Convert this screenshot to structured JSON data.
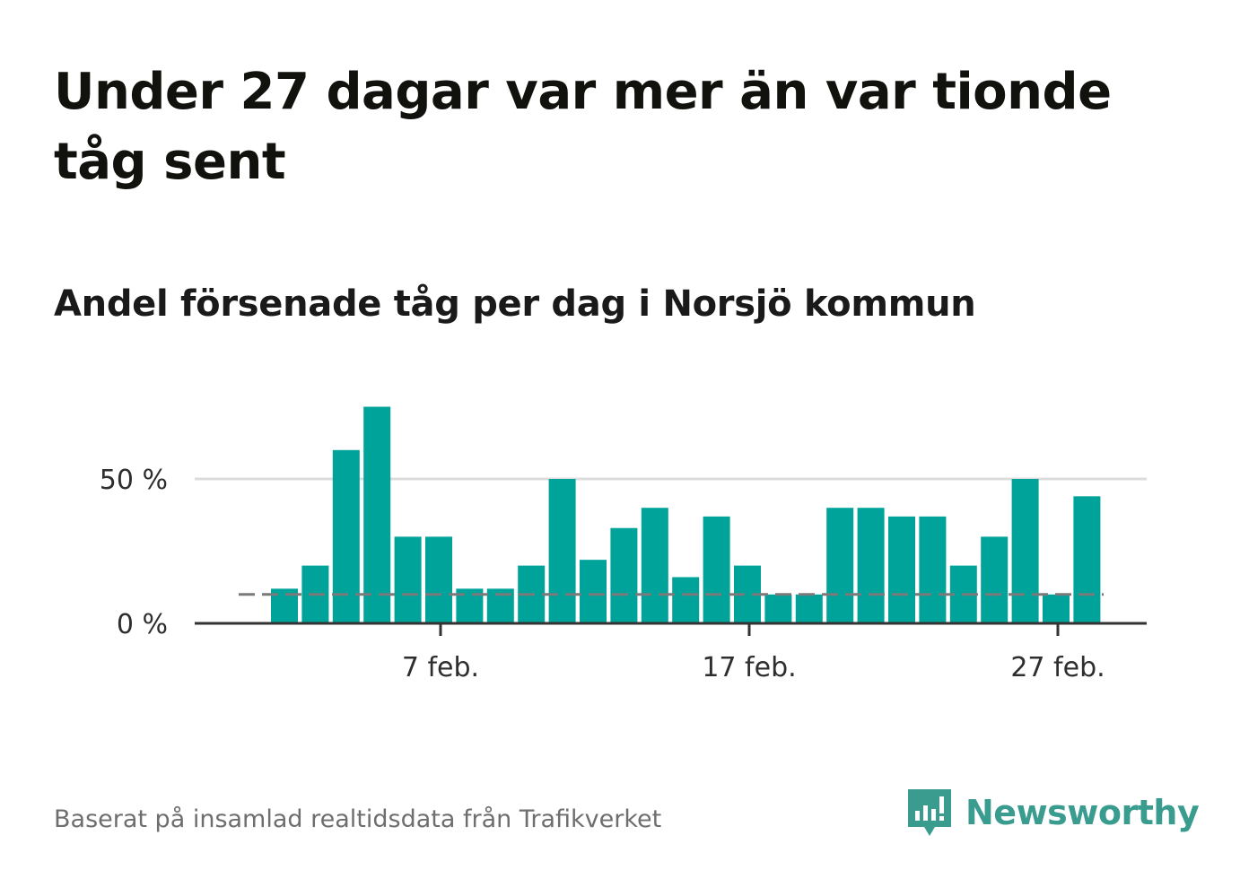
{
  "header": {
    "title": "Under 27 dagar var mer än var tionde tåg sent",
    "subtitle": "Andel försenade tåg per dag i Norsjö kommun"
  },
  "footer": {
    "source": "Baserat på insamlad realtidsdata från Trafikverket",
    "logo_text": "Newsworthy"
  },
  "colors": {
    "bar": "#00a39a",
    "reference_line": "#7a7a7a",
    "grid": "#dcdcdc",
    "axis": "#333333",
    "brand": "#3a9c8f"
  },
  "chart_data": {
    "type": "bar",
    "title": "Andel försenade tåg per dag i Norsjö kommun",
    "xlabel": "",
    "ylabel": "",
    "categories": [
      "2 feb.",
      "3 feb.",
      "4 feb.",
      "5 feb.",
      "6 feb.",
      "7 feb.",
      "8 feb.",
      "9 feb.",
      "10 feb.",
      "11 feb.",
      "12 feb.",
      "13 feb.",
      "14 feb.",
      "15 feb.",
      "16 feb.",
      "17 feb.",
      "18 feb.",
      "19 feb.",
      "20 feb.",
      "21 feb.",
      "22 feb.",
      "23 feb.",
      "24 feb.",
      "25 feb.",
      "26 feb.",
      "27 feb.",
      "28 feb."
    ],
    "values": [
      12,
      20,
      60,
      75,
      30,
      30,
      12,
      12,
      20,
      50,
      22,
      33,
      40,
      16,
      37,
      20,
      10,
      10,
      40,
      40,
      37,
      37,
      20,
      30,
      50,
      10,
      44
    ],
    "unit": "%",
    "ylim": [
      0,
      80
    ],
    "yticks": [
      0,
      50
    ],
    "ytick_labels": [
      "0 %",
      "50 %"
    ],
    "xticks": [
      "7 feb.",
      "17 feb.",
      "27 feb."
    ],
    "reference_line": 10,
    "grid": true
  }
}
